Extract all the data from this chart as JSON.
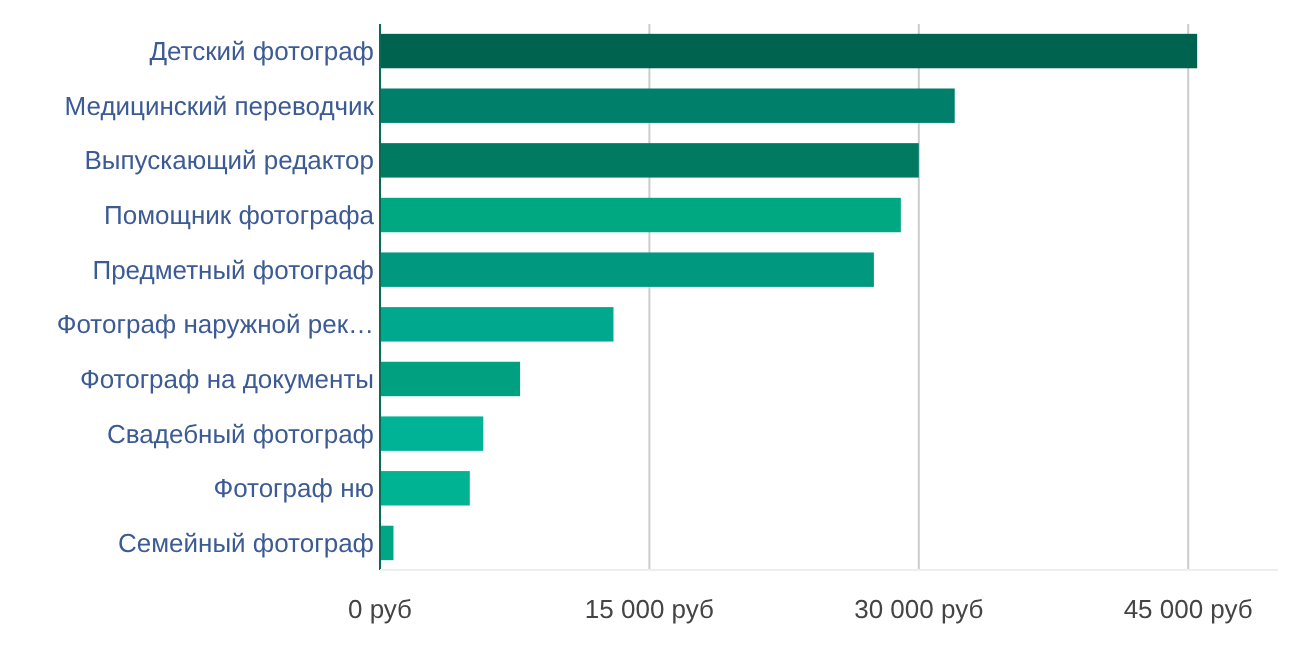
{
  "chart_data": {
    "type": "bar",
    "orientation": "horizontal",
    "categories": [
      "Детский фотограф",
      "Медицинский переводчик",
      "Выпускающий редактор",
      "Помощник фотографа",
      "Предметный фотограф",
      "Фотограф наружной рек…",
      "Фотограф на документы",
      "Свадебный фотограф",
      "Фотограф ню",
      "Семейный фотограф"
    ],
    "values": [
      45500,
      32000,
      30000,
      29000,
      27500,
      13000,
      7800,
      5750,
      5000,
      750
    ],
    "colors": [
      "#00634f",
      "#00806b",
      "#007a60",
      "#00a882",
      "#009980",
      "#00a98e",
      "#00a080",
      "#00b396",
      "#00b393",
      "#00a686"
    ],
    "xlim": [
      0,
      50000
    ],
    "xticks": [
      {
        "value": 0,
        "label": "0 руб"
      },
      {
        "value": 15000,
        "label": "15 000 руб"
      },
      {
        "value": 30000,
        "label": "30 000 руб"
      },
      {
        "value": 45000,
        "label": "45 000 руб"
      }
    ],
    "grid": "x"
  }
}
